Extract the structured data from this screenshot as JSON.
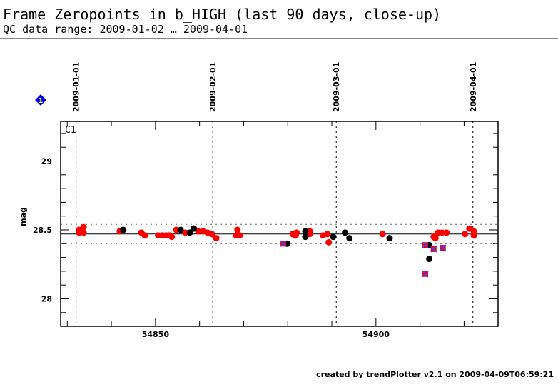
{
  "header": {
    "title": "Frame Zeropoints in b_HIGH (last 90 days, close-up)",
    "subtitle": "QC data range: 2009-01-02 … 2009-04-01"
  },
  "footer": "created by trendPlotter v2.1 on 2009-04-09T06:59:21",
  "badge": {
    "label": "1",
    "color": "#0000ff",
    "text_color": "#ffff00"
  },
  "chart_data": {
    "type": "scatter",
    "panel_label": "C1",
    "xlabel": "",
    "ylabel": "mag",
    "xlim": [
      54828.5,
      54927.7
    ],
    "ylim": [
      28.2,
      29.4
    ],
    "ylim_display": [
      27.8,
      29.3
    ],
    "x_ticks": [
      54850,
      54900
    ],
    "x_tick_labels": [
      "54850",
      "54900"
    ],
    "y_ticks": [
      28,
      28.5,
      29
    ],
    "y_tick_labels": [
      "28",
      "28.5",
      "29"
    ],
    "date_markers": [
      {
        "label": "2009-01-01",
        "x": 54832
      },
      {
        "label": "2009-02-01",
        "x": 54863
      },
      {
        "label": "2009-03-01",
        "x": 54891
      },
      {
        "label": "2009-04-01",
        "x": 54922
      }
    ],
    "reference_lines": {
      "median": 28.47,
      "upper": 28.54,
      "lower": 28.4
    },
    "colors": {
      "red": "#ff0000",
      "black": "#000000",
      "flagged_fill": "#ff0000",
      "flagged_cross": "#4040ff"
    },
    "series": [
      {
        "name": "red",
        "points": [
          [
            54832.7,
            28.5
          ],
          [
            54832.7,
            28.48
          ],
          [
            54833.7,
            28.52
          ],
          [
            54833.7,
            28.48
          ],
          [
            54841.9,
            28.49
          ],
          [
            54846.8,
            28.48
          ],
          [
            54847.6,
            28.46
          ],
          [
            54850.6,
            28.46
          ],
          [
            54851.6,
            28.46
          ],
          [
            54852.4,
            28.46
          ],
          [
            54853.2,
            28.46
          ],
          [
            54853.7,
            28.45
          ],
          [
            54854.7,
            28.5
          ],
          [
            54856.8,
            28.48
          ],
          [
            54859.7,
            28.49
          ],
          [
            54860.8,
            28.49
          ],
          [
            54861.8,
            28.48
          ],
          [
            54862.8,
            28.47
          ],
          [
            54863.8,
            28.44
          ],
          [
            54868.6,
            28.5
          ],
          [
            54868.3,
            28.46
          ],
          [
            54869.1,
            28.46
          ],
          [
            54881.1,
            28.47
          ],
          [
            54882.0,
            28.48
          ],
          [
            54881.8,
            28.46
          ],
          [
            54885.0,
            28.49
          ],
          [
            54885.0,
            28.47
          ],
          [
            54888.0,
            28.46
          ],
          [
            54889.0,
            28.47
          ],
          [
            54889.3,
            28.41
          ],
          [
            54901.5,
            28.47
          ],
          [
            54913.1,
            28.45
          ],
          [
            54913.5,
            28.44
          ],
          [
            54914.1,
            28.48
          ],
          [
            54915.0,
            28.48
          ],
          [
            54916.0,
            28.48
          ],
          [
            54920.2,
            28.47
          ],
          [
            54921.2,
            28.51
          ],
          [
            54922.2,
            28.49
          ],
          [
            54922.2,
            28.46
          ]
        ]
      },
      {
        "name": "black",
        "points": [
          [
            54842.7,
            28.5
          ],
          [
            54855.7,
            28.5
          ],
          [
            54857.8,
            28.48
          ],
          [
            54858.7,
            28.51
          ],
          [
            54879.9,
            28.4
          ],
          [
            54884.0,
            28.49
          ],
          [
            54884.0,
            28.45
          ],
          [
            54890.3,
            28.45
          ],
          [
            54893.0,
            28.48
          ],
          [
            54894.0,
            28.44
          ],
          [
            54903.1,
            28.44
          ],
          [
            54912.1,
            28.39
          ],
          [
            54912.1,
            28.29
          ]
        ]
      },
      {
        "name": "flagged",
        "points": [
          [
            54879.0,
            28.4
          ],
          [
            54911.2,
            28.39
          ],
          [
            54911.2,
            28.18
          ],
          [
            54913.1,
            28.36
          ],
          [
            54915.2,
            28.37
          ]
        ]
      }
    ]
  }
}
